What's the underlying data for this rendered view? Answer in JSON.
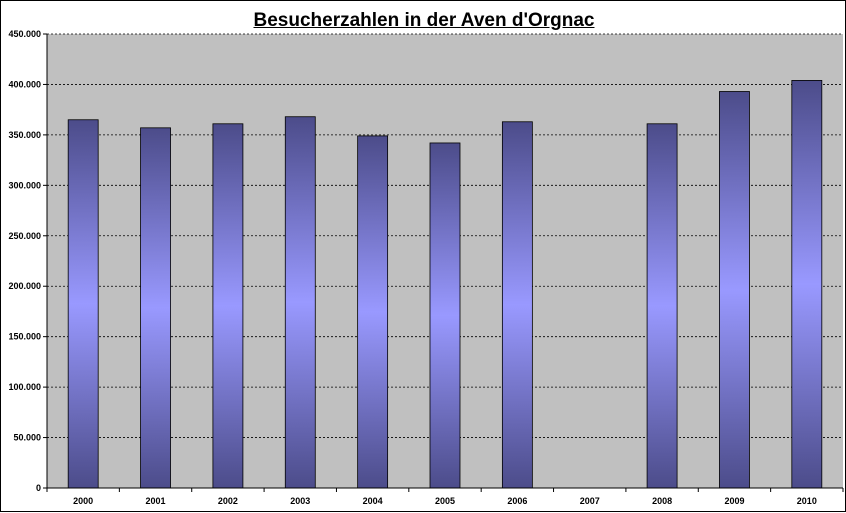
{
  "chart_data": {
    "type": "bar",
    "title": "Besucherzahlen in der Aven d'Orgnac",
    "xlabel": "",
    "ylabel": "",
    "categories": [
      "2000",
      "2001",
      "2002",
      "2003",
      "2004",
      "2005",
      "2006",
      "2007",
      "2008",
      "2009",
      "2010"
    ],
    "values": [
      365000,
      357000,
      361000,
      368000,
      349000,
      342000,
      363000,
      null,
      361000,
      393000,
      404000
    ],
    "ylim": [
      0,
      450000
    ],
    "y_ticks": [
      0,
      50000,
      100000,
      150000,
      200000,
      250000,
      300000,
      350000,
      400000,
      450000
    ],
    "y_tick_labels": [
      "0",
      "50.000",
      "100.000",
      "150.000",
      "200.000",
      "250.000",
      "300.000",
      "350.000",
      "400.000",
      "450.000"
    ],
    "grid": true,
    "legend": "none",
    "colors": {
      "plot_background": "#c0c0c0",
      "bar_dark": "#4c4c8a",
      "bar_light": "#9999ff",
      "gridline": "#000000"
    }
  }
}
